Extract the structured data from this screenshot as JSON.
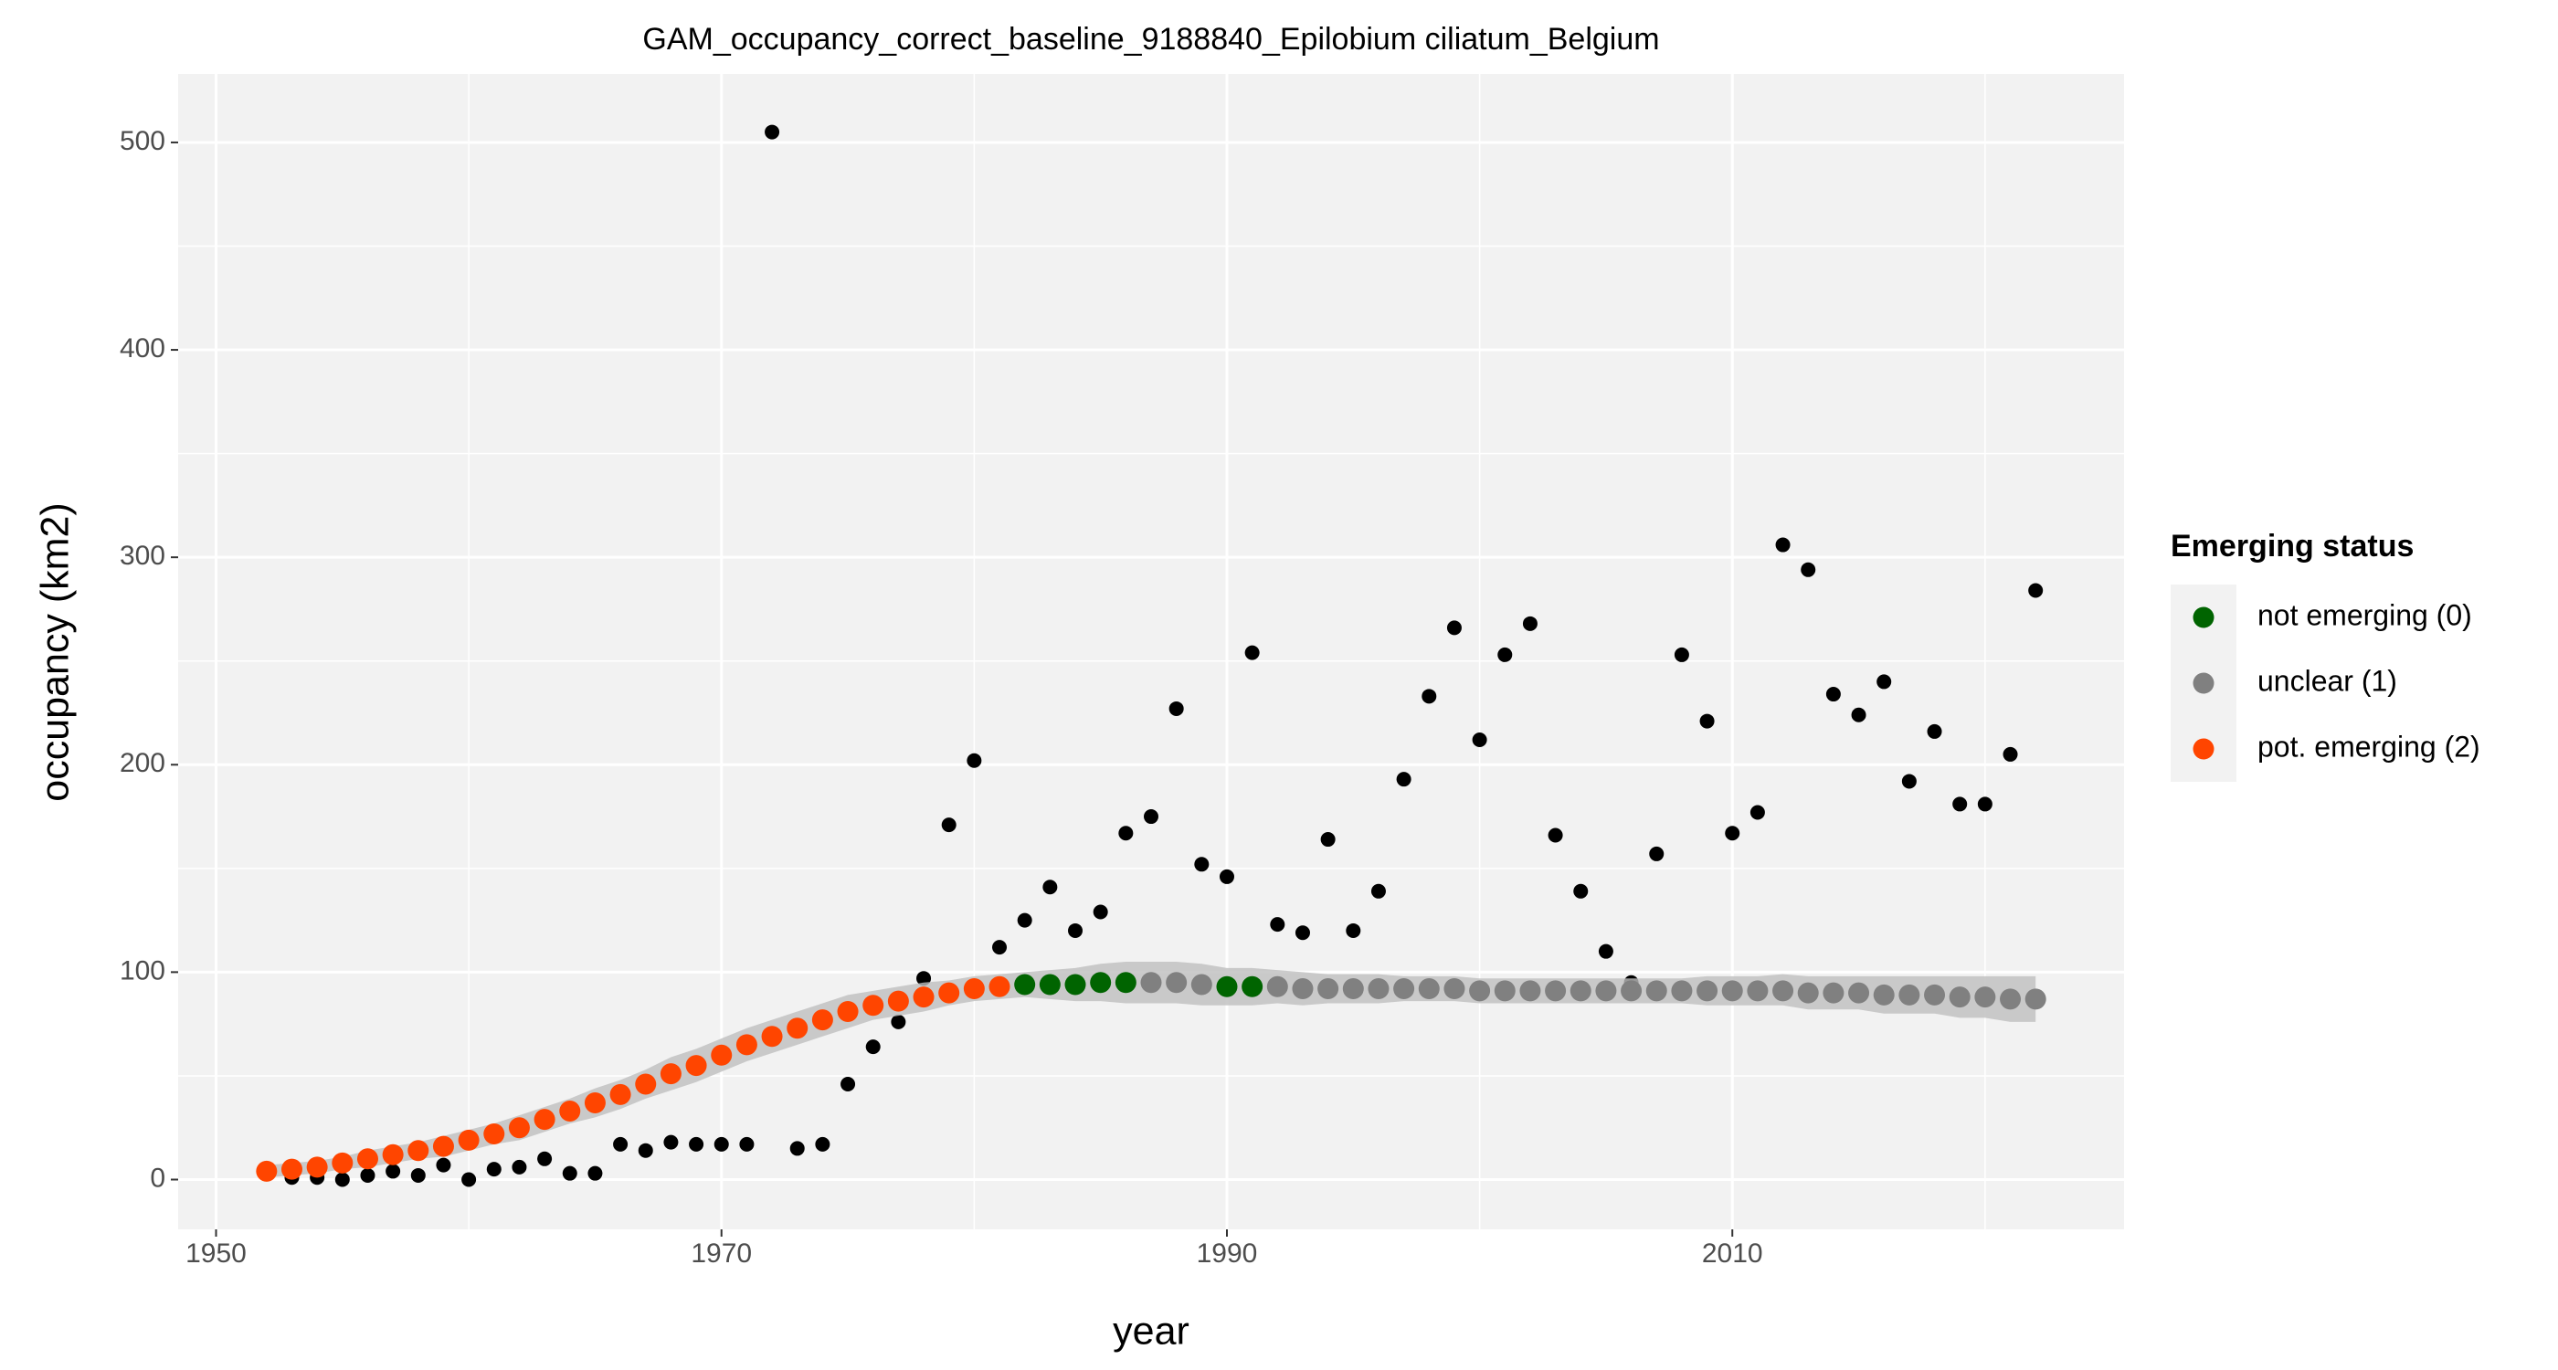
{
  "chart_data": {
    "type": "scatter",
    "title": "GAM_occupancy_correct_baseline_9188840_Epilobium ciliatum_Belgium",
    "x_label": "year",
    "y_label": "occupancy (km2)",
    "xlim": [
      1948.5,
      2025.5
    ],
    "ylim": [
      -24,
      533
    ],
    "xticks": [
      1950,
      1970,
      1990,
      2010
    ],
    "yticks": [
      0,
      100,
      200,
      300,
      400,
      500
    ],
    "grid": true,
    "x": [
      1952,
      1953,
      1954,
      1955,
      1956,
      1957,
      1958,
      1959,
      1960,
      1961,
      1962,
      1963,
      1964,
      1965,
      1966,
      1967,
      1968,
      1969,
      1970,
      1971,
      1972,
      1973,
      1974,
      1975,
      1976,
      1977,
      1978,
      1979,
      1980,
      1981,
      1982,
      1983,
      1984,
      1985,
      1986,
      1987,
      1988,
      1989,
      1990,
      1991,
      1992,
      1993,
      1994,
      1995,
      1996,
      1997,
      1998,
      1999,
      2000,
      2001,
      2002,
      2003,
      2004,
      2005,
      2006,
      2007,
      2008,
      2009,
      2010,
      2011,
      2012,
      2013,
      2014,
      2015,
      2016,
      2017,
      2018,
      2019,
      2020,
      2021,
      2022
    ],
    "observed": [
      3,
      1,
      1,
      0,
      2,
      4,
      2,
      7,
      0,
      5,
      6,
      10,
      3,
      3,
      17,
      14,
      18,
      17,
      17,
      17,
      505,
      15,
      17,
      46,
      64,
      76,
      97,
      171,
      202,
      112,
      125,
      141,
      120,
      129,
      167,
      175,
      227,
      152,
      146,
      254,
      123,
      119,
      164,
      120,
      139,
      193,
      233,
      266,
      212,
      253,
      268,
      166,
      139,
      110,
      95,
      157,
      253,
      221,
      167,
      177,
      306,
      294,
      234,
      224,
      240,
      192,
      216,
      181,
      181,
      205,
      284
    ],
    "observed_color": "#000000",
    "fit": [
      4,
      5,
      6,
      8,
      10,
      12,
      14,
      16,
      19,
      22,
      25,
      29,
      33,
      37,
      41,
      46,
      51,
      55,
      60,
      65,
      69,
      73,
      77,
      81,
      84,
      86,
      88,
      90,
      92,
      93,
      94,
      94,
      94,
      95,
      95,
      95,
      95,
      94,
      93,
      93,
      93,
      92,
      92,
      92,
      92,
      92,
      92,
      92,
      91,
      91,
      91,
      91,
      91,
      91,
      91,
      91,
      91,
      91,
      91,
      91,
      91,
      90,
      90,
      90,
      89,
      89,
      89,
      88,
      88,
      87,
      87
    ],
    "lcl": [
      1,
      2,
      3,
      5,
      6,
      8,
      10,
      11,
      14,
      17,
      19,
      23,
      27,
      30,
      34,
      39,
      43,
      47,
      52,
      57,
      61,
      65,
      69,
      73,
      77,
      79,
      81,
      84,
      86,
      87,
      88,
      87,
      86,
      86,
      85,
      85,
      85,
      84,
      84,
      84,
      85,
      84,
      85,
      85,
      85,
      86,
      86,
      86,
      85,
      85,
      85,
      85,
      85,
      85,
      85,
      85,
      85,
      84,
      84,
      84,
      84,
      82,
      82,
      82,
      80,
      80,
      80,
      78,
      78,
      76,
      76
    ],
    "ucl": [
      7,
      8,
      9,
      11,
      14,
      16,
      18,
      21,
      24,
      27,
      31,
      35,
      39,
      44,
      48,
      53,
      59,
      63,
      68,
      73,
      77,
      81,
      85,
      89,
      91,
      93,
      95,
      96,
      98,
      99,
      100,
      101,
      102,
      104,
      105,
      105,
      105,
      104,
      102,
      102,
      101,
      100,
      99,
      99,
      99,
      98,
      98,
      98,
      97,
      97,
      97,
      97,
      97,
      97,
      97,
      97,
      97,
      98,
      98,
      98,
      99,
      98,
      98,
      98,
      98,
      98,
      98,
      98,
      98,
      98,
      98
    ],
    "band_color": "#bebebe",
    "status": [
      2,
      2,
      2,
      2,
      2,
      2,
      2,
      2,
      2,
      2,
      2,
      2,
      2,
      2,
      2,
      2,
      2,
      2,
      2,
      2,
      2,
      2,
      2,
      2,
      2,
      2,
      2,
      2,
      2,
      2,
      0,
      0,
      0,
      0,
      0,
      1,
      1,
      1,
      0,
      0,
      1,
      1,
      1,
      1,
      1,
      1,
      1,
      1,
      1,
      1,
      1,
      1,
      1,
      1,
      1,
      1,
      1,
      1,
      1,
      1,
      1,
      1,
      1,
      1,
      1,
      1,
      1,
      1,
      1,
      1,
      1
    ],
    "legend": {
      "title": "Emerging status",
      "position": "right",
      "items": [
        {
          "label": "not emerging (0)",
          "color": "#006400"
        },
        {
          "label": "unclear (1)",
          "color": "#808080"
        },
        {
          "label": "pot. emerging (2)",
          "color": "#ff4500"
        }
      ]
    }
  }
}
